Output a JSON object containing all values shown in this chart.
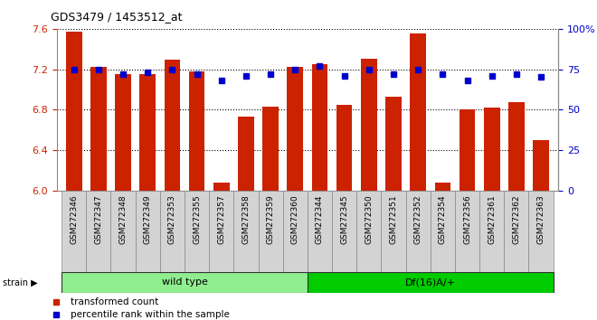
{
  "title": "GDS3479 / 1453512_at",
  "samples": [
    "GSM272346",
    "GSM272347",
    "GSM272348",
    "GSM272349",
    "GSM272353",
    "GSM272355",
    "GSM272357",
    "GSM272358",
    "GSM272359",
    "GSM272360",
    "GSM272344",
    "GSM272345",
    "GSM272350",
    "GSM272351",
    "GSM272352",
    "GSM272354",
    "GSM272356",
    "GSM272361",
    "GSM272362",
    "GSM272363"
  ],
  "transformed_count": [
    7.57,
    7.22,
    7.15,
    7.15,
    7.29,
    7.18,
    6.08,
    6.73,
    6.83,
    7.22,
    7.25,
    6.85,
    7.3,
    6.93,
    7.55,
    6.08,
    6.8,
    6.82,
    6.87,
    6.5
  ],
  "percentile_rank": [
    75,
    75,
    72,
    73,
    75,
    72,
    68,
    71,
    72,
    75,
    77,
    71,
    75,
    72,
    75,
    72,
    68,
    71,
    72,
    70
  ],
  "wild_type_count": 10,
  "df_count": 10,
  "ylim_left": [
    6.0,
    7.6
  ],
  "ylim_right": [
    0,
    100
  ],
  "bar_color": "#CC2200",
  "dot_color": "#0000CC",
  "bg_color": "#FFFFFF",
  "left_tick_color": "#CC2200",
  "right_tick_color": "#0000CC",
  "yticks_left": [
    6.0,
    6.4,
    6.8,
    7.2,
    7.6
  ],
  "yticks_right": [
    0,
    25,
    50,
    75,
    100
  ],
  "bar_width": 0.65,
  "wt_color": "#90EE90",
  "df_color": "#00CC00",
  "tick_bg_color": "#D3D3D3",
  "group_border_color": "#333333"
}
